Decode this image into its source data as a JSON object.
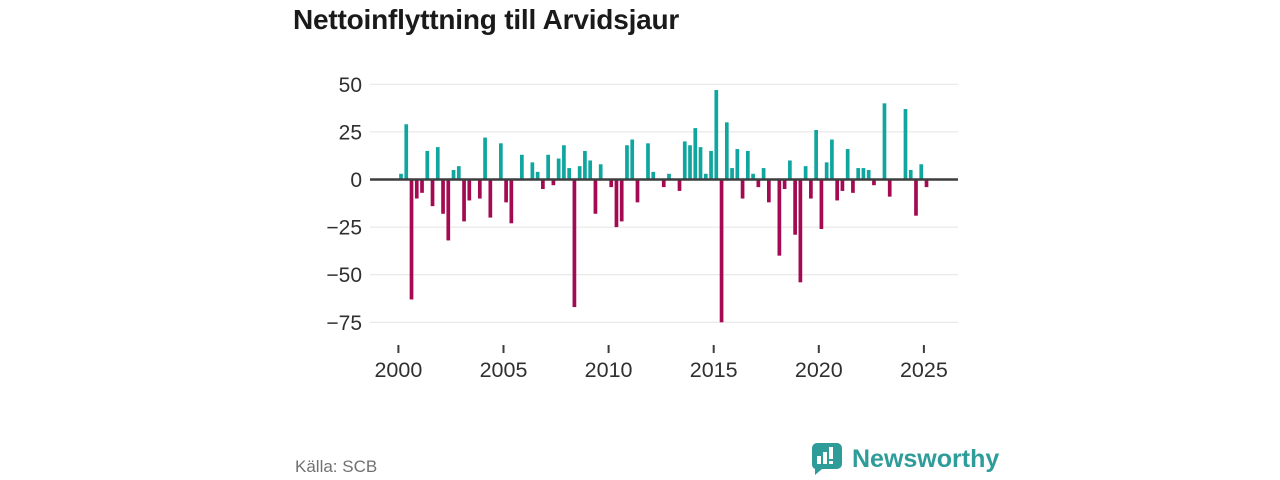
{
  "title": "Nettoinflyttning till Arvidsjaur",
  "source": "Källa: SCB",
  "brand": {
    "name": "Newsworthy",
    "color": "#2E9C98"
  },
  "colors": {
    "positive": "#10A6A0",
    "negative": "#A40A52",
    "gridline": "#E4E4E4",
    "zero_line": "#3D3D3D",
    "axis_text": "#303030",
    "source_text": "#717171",
    "title_text": "#1A1A1A",
    "background": "#FFFFFF"
  },
  "chart_data": {
    "type": "bar",
    "title": "Nettoinflyttning till Arvidsjaur",
    "x_unit": "quarter",
    "x_start": "2000 Q1",
    "x_end": "2025 Q1",
    "values": [
      3,
      29,
      -63,
      -10,
      -7,
      15,
      -14,
      17,
      -18,
      -32,
      5,
      7,
      -22,
      -11,
      0,
      -10,
      22,
      -20,
      0,
      19,
      -12,
      -23,
      0,
      13,
      0,
      9,
      4,
      -5,
      13,
      -3,
      11,
      18,
      6,
      -67,
      7,
      15,
      10,
      -18,
      8,
      0,
      -4,
      -25,
      -22,
      18,
      21,
      -12,
      0,
      19,
      4,
      0,
      -4,
      3,
      0,
      -6,
      20,
      18,
      27,
      17,
      3,
      15,
      47,
      -75,
      30,
      6,
      16,
      -10,
      15,
      3,
      -4,
      6,
      -12,
      0,
      -40,
      -5,
      10,
      -29,
      -54,
      7,
      -10,
      26,
      -26,
      9,
      21,
      -11,
      -6,
      16,
      -7,
      6,
      6,
      5,
      -3,
      0,
      40,
      -9,
      0,
      0,
      37,
      5,
      -19,
      8,
      -4
    ],
    "xtick_labels": [
      "2000",
      "2005",
      "2010",
      "2015",
      "2020",
      "2025"
    ],
    "ytick_labels": [
      "50",
      "25",
      "0",
      "−25",
      "−50",
      "−75"
    ],
    "ytick_values": [
      50,
      25,
      0,
      -25,
      -50,
      -75
    ],
    "ylim": [
      -84,
      55
    ],
    "grid": "horizontal",
    "legend": "none"
  }
}
